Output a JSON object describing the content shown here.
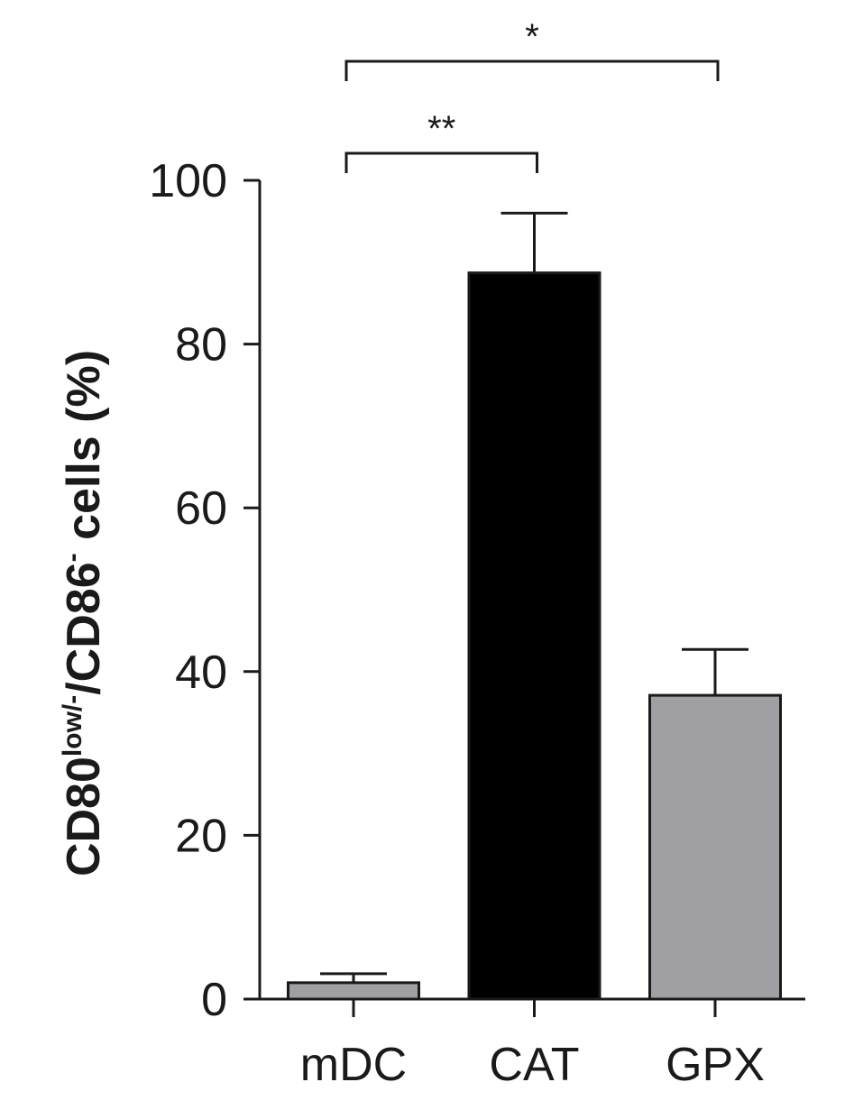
{
  "chart_data": {
    "type": "bar",
    "ylabel": [
      {
        "text": "CD80"
      },
      {
        "text": "low/-",
        "sup": true
      },
      {
        "text": "/CD86"
      },
      {
        "text": "-",
        "sup": true
      },
      {
        "text": " cells (%)"
      }
    ],
    "categories": [
      "mDC",
      "CAT",
      "GPX"
    ],
    "values": [
      2,
      88.7,
      37.1
    ],
    "errors": [
      1.1,
      7.3,
      5.6
    ],
    "colors": [
      "#a0a0a4",
      "#000000",
      "#a0a0a4"
    ],
    "ylim": [
      0,
      100
    ],
    "yticks": [
      0,
      20,
      40,
      60,
      80,
      100
    ],
    "annotations": [
      {
        "text": "**",
        "from": 0,
        "to": 1
      },
      {
        "text": "*",
        "from": 0,
        "to": 2
      }
    ]
  }
}
